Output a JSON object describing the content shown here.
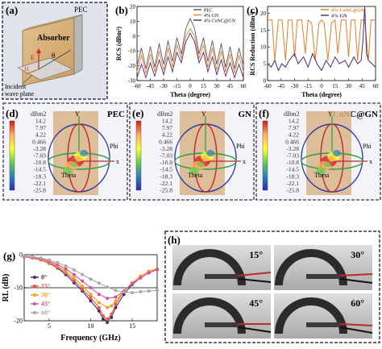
{
  "panels": {
    "a": {
      "letter": "(a)",
      "pec": "PEC",
      "absorber": "Absorber",
      "e": "E",
      "h": "H",
      "theta": "θ",
      "incident": "Incident\nwave plane"
    },
    "b": {
      "letter": "(b)"
    },
    "c": {
      "letter": "(c)"
    },
    "d": {
      "letter": "(d)",
      "title": "PEC"
    },
    "e": {
      "letter": "(e)",
      "title": "GN"
    },
    "f": {
      "letter": "(f)",
      "title": "CoNC@GN"
    },
    "g": {
      "letter": "(g)"
    },
    "h": {
      "letter": "(h)",
      "angles": [
        "15°",
        "30°",
        "45°",
        "60°"
      ]
    }
  },
  "colormap": {
    "unit": "dBm2",
    "ticks": [
      "14.2",
      "7.97",
      "4.22",
      "0.466",
      "-3.28",
      "-7.03",
      "-10.8",
      "-14.5",
      "-18.3",
      "-22.1",
      "-25.8"
    ],
    "axis_x": "x",
    "axis_y": "Y",
    "axis_phi": "Phi",
    "axis_theta": "Theta"
  },
  "colors": {
    "pec": "#555566",
    "gn": "#e87d2a",
    "conc": "#4b2a6e",
    "frame": "#333355"
  },
  "chart_data": [
    {
      "type": "line",
      "panel": "b",
      "xlabel": "Theta (degree)",
      "ylabel": "RCS (dBm²)",
      "xlim": [
        -60,
        60
      ],
      "ylim": [
        -30,
        20
      ],
      "xticks": [
        -60,
        -45,
        -30,
        -15,
        0,
        15,
        30,
        45,
        60
      ],
      "yticks": [
        -30,
        -20,
        -10,
        0,
        10,
        20
      ],
      "legend": [
        "PEC",
        "4% GN",
        "4% CoNC@GN"
      ],
      "series": [
        {
          "name": "PEC",
          "color": "#555566",
          "x": [
            -60,
            -55,
            -50,
            -45,
            -40,
            -35,
            -30,
            -25,
            -20,
            -15,
            -10,
            -5,
            0,
            5,
            10,
            15,
            20,
            25,
            30,
            35,
            40,
            45,
            50,
            55,
            60
          ],
          "y": [
            -20,
            -8,
            -22,
            -7,
            -21,
            -5,
            -19,
            -3,
            -17,
            -1,
            -12,
            5,
            12,
            5,
            -12,
            -1,
            -17,
            -3,
            -19,
            -5,
            -21,
            -7,
            -22,
            -8,
            -20
          ]
        },
        {
          "name": "4% GN",
          "color": "#e87d2a",
          "x": [
            -60,
            -55,
            -50,
            -45,
            -40,
            -35,
            -30,
            -25,
            -20,
            -15,
            -10,
            -5,
            0,
            5,
            10,
            15,
            20,
            25,
            30,
            35,
            40,
            45,
            50,
            55,
            60
          ],
          "y": [
            -24,
            -13,
            -25,
            -12,
            -24,
            -10,
            -23,
            -8,
            -21,
            -6,
            -15,
            0,
            5,
            0,
            -15,
            -6,
            -21,
            -8,
            -23,
            -10,
            -24,
            -12,
            -25,
            -13,
            -24
          ]
        },
        {
          "name": "4% CoNC@GN",
          "color": "#4b2a6e",
          "x": [
            -60,
            -55,
            -50,
            -45,
            -40,
            -35,
            -30,
            -25,
            -20,
            -15,
            -10,
            -5,
            0,
            5,
            10,
            15,
            20,
            25,
            30,
            35,
            40,
            45,
            50,
            55,
            60
          ],
          "y": [
            -28,
            -19,
            -28,
            -18,
            -27,
            -16,
            -26,
            -14,
            -24,
            -11,
            -18,
            -4,
            2,
            -4,
            -18,
            -11,
            -24,
            -14,
            -26,
            -16,
            -27,
            -18,
            -28,
            -19,
            -28
          ]
        }
      ]
    },
    {
      "type": "line",
      "panel": "c",
      "xlabel": "Theta (degree)",
      "ylabel": "RCS Reduction (dBm²)",
      "xlim": [
        -60,
        60
      ],
      "ylim": [
        0,
        22
      ],
      "xticks": [
        -60,
        -45,
        -30,
        -15,
        0,
        15,
        30,
        45,
        60
      ],
      "yticks": [
        0,
        5,
        10,
        15,
        20
      ],
      "legend": [
        "4% CoNC@GN",
        "4% GN"
      ],
      "series": [
        {
          "name": "4% CoNC@GN",
          "color": "#e87d2a",
          "x": [
            -60,
            -55,
            -52,
            -48,
            -44,
            -40,
            -37,
            -33,
            -30,
            -27,
            -22,
            -18,
            -15,
            -11,
            -7,
            -3,
            0,
            3,
            7,
            11,
            15,
            18,
            22,
            27,
            30,
            33,
            37,
            40,
            44,
            48,
            52,
            55,
            60
          ],
          "y": [
            18,
            18,
            6,
            18,
            18,
            6,
            18,
            18,
            7,
            18,
            18,
            8,
            18,
            17,
            6,
            17,
            18,
            17,
            6,
            17,
            18,
            8,
            18,
            18,
            7,
            18,
            18,
            6,
            18,
            18,
            6,
            18,
            18
          ]
        },
        {
          "name": "4% GN",
          "color": "#4b2a6e",
          "x": [
            -60,
            -56,
            -52,
            -48,
            -44,
            -40,
            -36,
            -30,
            -26,
            -20,
            -15,
            -10,
            -5,
            0,
            5,
            10,
            15,
            20,
            26,
            30,
            36,
            40,
            44,
            46,
            48,
            50,
            52,
            56,
            60
          ],
          "y": [
            5,
            4,
            6,
            3,
            5,
            4,
            6,
            8,
            5,
            7,
            4,
            8,
            5,
            3,
            6,
            4,
            7,
            5,
            6,
            4,
            7,
            5,
            6,
            12,
            22,
            8,
            6,
            5,
            4
          ]
        }
      ]
    },
    {
      "type": "line",
      "panel": "g",
      "xlabel": "Frequency (GHz)",
      "ylabel": "RL (dB)",
      "xlim": [
        2,
        18
      ],
      "ylim": [
        -20,
        0
      ],
      "xticks": [
        5,
        10,
        15
      ],
      "yticks": [
        -20,
        -10,
        0
      ],
      "legend": [
        "0°",
        "15°",
        "30°",
        "45°",
        "60°"
      ],
      "series": [
        {
          "name": "0°",
          "color": "#4b2a6e",
          "x": [
            2,
            3,
            4,
            5,
            6,
            7,
            8,
            9,
            10,
            11,
            11.5,
            12,
            12.5,
            13,
            14,
            15,
            16,
            17,
            18
          ],
          "y": [
            -0.6,
            -1,
            -1.6,
            -2.6,
            -4,
            -6,
            -8.5,
            -11,
            -14,
            -17,
            -19.5,
            -20.5,
            -19,
            -16,
            -12,
            -9,
            -7,
            -5.5,
            -4.5
          ]
        },
        {
          "name": "15°",
          "color": "#e8584a",
          "x": [
            2,
            3,
            4,
            5,
            6,
            7,
            8,
            9,
            10,
            11,
            11.5,
            12,
            12.5,
            13,
            14,
            15,
            16,
            17,
            18
          ],
          "y": [
            -0.6,
            -1,
            -1.6,
            -2.5,
            -3.8,
            -5.5,
            -7.8,
            -10.5,
            -13,
            -16,
            -18.5,
            -19.5,
            -18,
            -15,
            -11,
            -8.5,
            -6.5,
            -5,
            -4.3
          ]
        },
        {
          "name": "30°",
          "color": "#f0a020",
          "x": [
            2,
            3,
            4,
            5,
            6,
            7,
            8,
            9,
            10,
            11,
            12,
            12.5,
            13,
            14,
            15,
            16,
            17,
            18
          ],
          "y": [
            -0.5,
            -0.9,
            -1.5,
            -2.3,
            -3.4,
            -5,
            -7,
            -9.5,
            -12,
            -14.5,
            -16,
            -15.5,
            -14,
            -11,
            -8.5,
            -6.5,
            -5,
            -4.2
          ]
        },
        {
          "name": "45°",
          "color": "#d94fa0",
          "x": [
            2,
            3,
            4,
            5,
            6,
            7,
            8,
            9,
            10,
            11,
            12,
            13,
            14,
            15,
            16,
            17,
            18
          ],
          "y": [
            -0.5,
            -0.8,
            -1.3,
            -2,
            -3,
            -4.3,
            -6,
            -8,
            -10,
            -12,
            -13.2,
            -12.8,
            -11,
            -8.8,
            -7,
            -5.5,
            -4.5
          ]
        },
        {
          "name": "60°",
          "color": "#a8a8a8",
          "x": [
            2,
            3,
            4,
            5,
            6,
            7,
            8,
            9,
            10,
            11,
            12,
            13,
            14,
            15,
            16,
            17,
            18
          ],
          "y": [
            -0.4,
            -0.6,
            -1,
            -1.6,
            -2.4,
            -3.4,
            -4.6,
            -6,
            -7.4,
            -8.6,
            -9.8,
            -10.8,
            -11.3,
            -11.5,
            -11.2,
            -11,
            -10.8
          ]
        }
      ]
    }
  ]
}
